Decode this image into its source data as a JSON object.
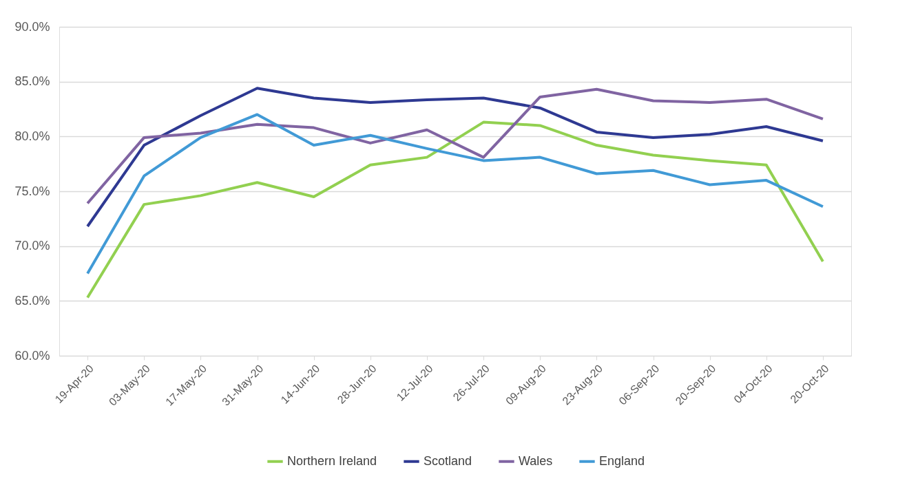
{
  "chart_data": {
    "type": "line",
    "categories": [
      "19-Apr-20",
      "03-May-20",
      "17-May-20",
      "31-May-20",
      "14-Jun-20",
      "28-Jun-20",
      "12-Jul-20",
      "26-Jul-20",
      "09-Aug-20",
      "23-Aug-20",
      "06-Sep-20",
      "20-Sep-20",
      "04-Oct-20",
      "20-Oct-20"
    ],
    "series": [
      {
        "name": "Northern Ireland",
        "color": "#92d050",
        "values": [
          65.3,
          73.8,
          74.6,
          75.8,
          74.5,
          77.4,
          78.1,
          81.3,
          81.0,
          79.2,
          78.3,
          77.8,
          77.4,
          68.6
        ]
      },
      {
        "name": "Scotland",
        "color": "#2e3992",
        "values": [
          71.8,
          79.2,
          81.9,
          84.4,
          83.5,
          83.1,
          83.35,
          83.5,
          82.6,
          80.4,
          79.9,
          80.2,
          80.9,
          79.6
        ]
      },
      {
        "name": "Wales",
        "color": "#8064a2",
        "values": [
          73.9,
          79.9,
          80.3,
          81.1,
          80.8,
          79.4,
          80.6,
          78.1,
          83.6,
          84.3,
          83.25,
          83.1,
          83.4,
          81.6
        ]
      },
      {
        "name": "England",
        "color": "#419ad6",
        "values": [
          67.5,
          76.4,
          79.9,
          82.0,
          79.2,
          80.1,
          78.9,
          77.8,
          78.1,
          76.6,
          76.9,
          75.6,
          76.0,
          73.6
        ]
      }
    ],
    "ylim": [
      60,
      90
    ],
    "yticks": [
      {
        "value": 60,
        "label": "60.0%"
      },
      {
        "value": 65,
        "label": "65.0%"
      },
      {
        "value": 70,
        "label": "70.0%"
      },
      {
        "value": 75,
        "label": "75.0%"
      },
      {
        "value": 80,
        "label": "80.0%"
      },
      {
        "value": 85,
        "label": "85.0%"
      },
      {
        "value": 90,
        "label": "90.0%"
      }
    ],
    "grid": "y",
    "legend": "bottom",
    "marker": "none",
    "line_style": "solid"
  }
}
